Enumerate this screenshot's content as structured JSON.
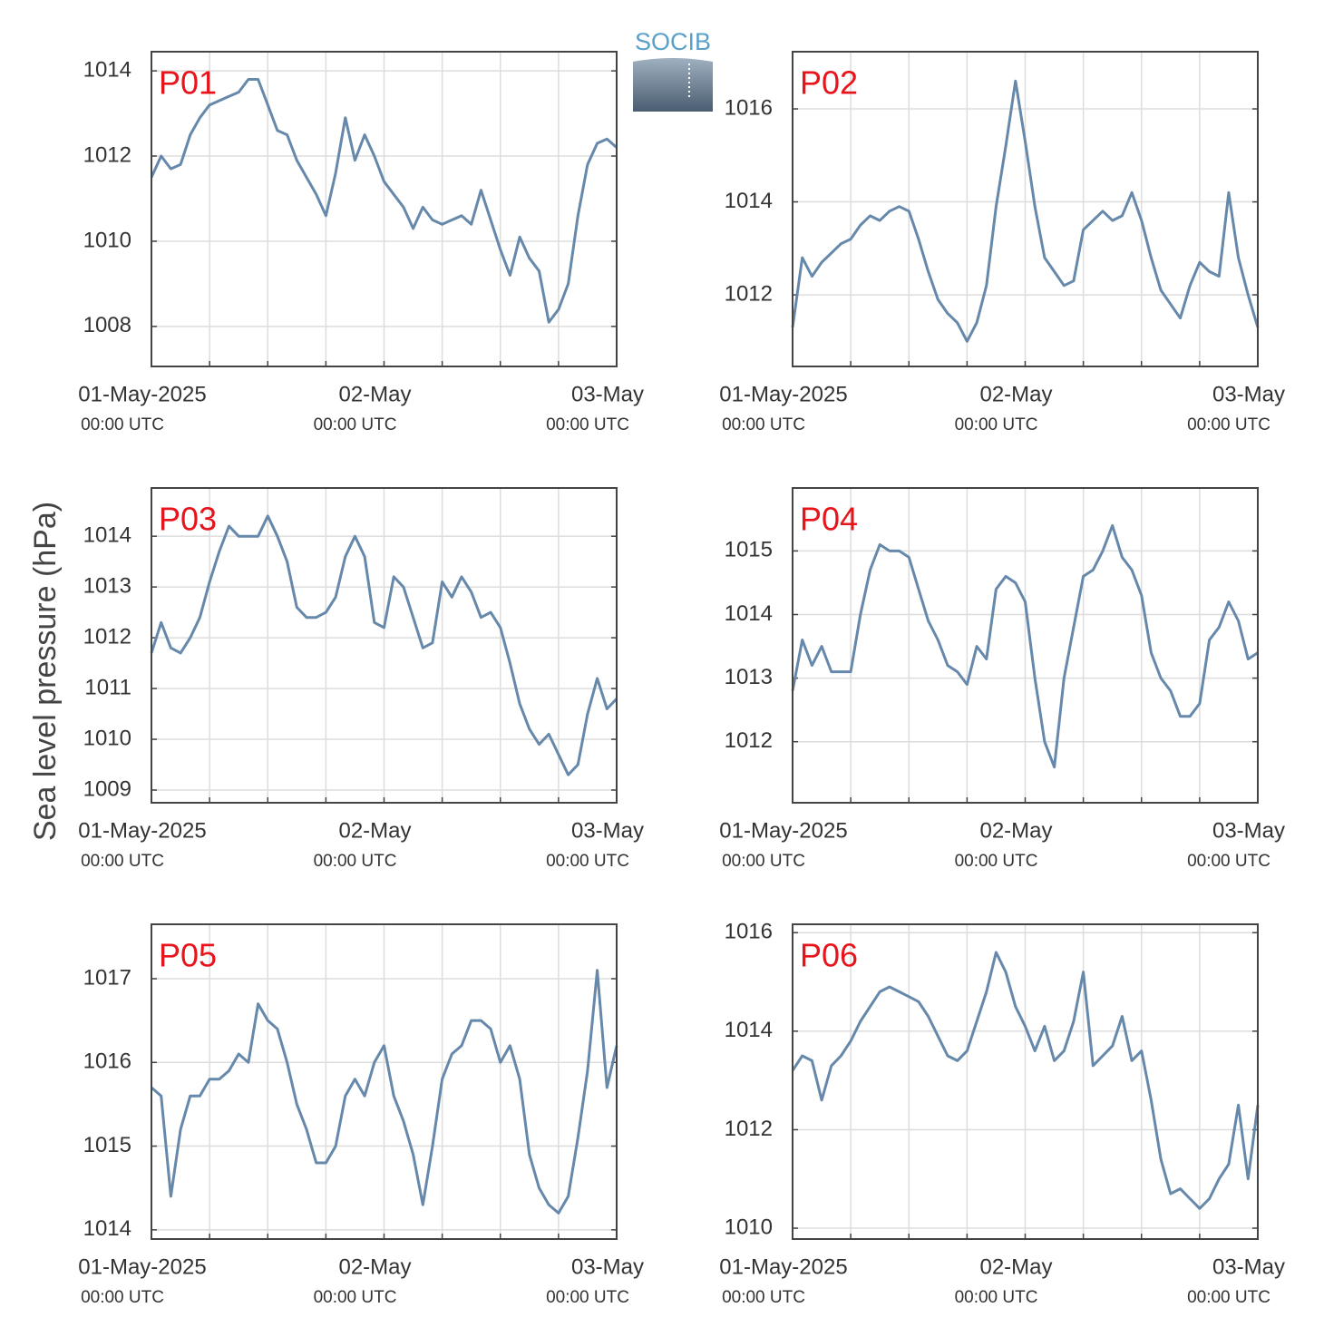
{
  "ylabel": "Sea level pressure (hPa)",
  "logo": "SOCIB",
  "chart_data": [
    {
      "type": "line",
      "title": "P01",
      "color": "#6688aa",
      "grid": true,
      "x": [
        "2025-05-01T00:00",
        "2025-05-01T01:00",
        "2025-05-01T02:00",
        "2025-05-01T03:00",
        "2025-05-01T04:00",
        "2025-05-01T05:00",
        "2025-05-01T06:00",
        "2025-05-01T07:00",
        "2025-05-01T08:00",
        "2025-05-01T09:00",
        "2025-05-01T10:00",
        "2025-05-01T11:00",
        "2025-05-01T12:00",
        "2025-05-01T13:00",
        "2025-05-01T14:00",
        "2025-05-01T15:00",
        "2025-05-01T16:00",
        "2025-05-01T17:00",
        "2025-05-01T18:00",
        "2025-05-01T19:00",
        "2025-05-01T20:00",
        "2025-05-01T21:00",
        "2025-05-01T22:00",
        "2025-05-01T23:00",
        "2025-05-02T00:00",
        "2025-05-02T01:00",
        "2025-05-02T02:00",
        "2025-05-02T03:00",
        "2025-05-02T04:00",
        "2025-05-02T05:00",
        "2025-05-02T06:00",
        "2025-05-02T07:00",
        "2025-05-02T08:00",
        "2025-05-02T09:00",
        "2025-05-02T10:00",
        "2025-05-02T11:00",
        "2025-05-02T12:00",
        "2025-05-02T13:00",
        "2025-05-02T14:00",
        "2025-05-02T15:00",
        "2025-05-02T16:00",
        "2025-05-02T17:00",
        "2025-05-02T18:00",
        "2025-05-02T19:00",
        "2025-05-02T20:00",
        "2025-05-02T21:00",
        "2025-05-02T22:00",
        "2025-05-02T23:00",
        "2025-05-03T00:00"
      ],
      "values": [
        1011.5,
        1012.0,
        1011.7,
        1011.8,
        1012.5,
        1012.9,
        1013.2,
        1013.3,
        1013.4,
        1013.5,
        1013.8,
        1013.8,
        1013.2,
        1012.6,
        1012.5,
        1011.9,
        1011.5,
        1011.1,
        1010.6,
        1011.6,
        1012.9,
        1011.9,
        1012.5,
        1012.0,
        1011.4,
        1011.1,
        1010.8,
        1010.3,
        1010.8,
        1010.5,
        1010.4,
        1010.5,
        1010.6,
        1010.4,
        1011.2,
        1010.5,
        1009.8,
        1009.2,
        1010.1,
        1009.6,
        1009.3,
        1008.1,
        1008.4,
        1009.0,
        1010.6,
        1011.8,
        1012.3,
        1012.4,
        1012.2
      ],
      "xlim": [
        "2025-05-01T00:00",
        "2025-05-03T00:00"
      ],
      "xticks": [
        {
          "value": "2025-05-01T00:00",
          "label": "01-May-2025",
          "sublabel": "00:00 UTC"
        },
        {
          "value": "2025-05-02T00:00",
          "label": "02-May",
          "sublabel": "00:00 UTC"
        },
        {
          "value": "2025-05-03T00:00",
          "label": "03-May",
          "sublabel": "00:00 UTC"
        }
      ],
      "xminorticks": [
        "2025-05-01T06:00",
        "2025-05-01T12:00",
        "2025-05-01T18:00",
        "2025-05-02T06:00",
        "2025-05-02T12:00",
        "2025-05-02T18:00"
      ],
      "ylim": [
        1007.06,
        1014.45
      ],
      "yticks": [
        1008,
        1010,
        1012,
        1014
      ]
    },
    {
      "type": "line",
      "title": "P02",
      "color": "#6688aa",
      "grid": true,
      "x": [
        "2025-05-01T00:00",
        "2025-05-01T01:00",
        "2025-05-01T02:00",
        "2025-05-01T03:00",
        "2025-05-01T04:00",
        "2025-05-01T05:00",
        "2025-05-01T06:00",
        "2025-05-01T07:00",
        "2025-05-01T08:00",
        "2025-05-01T09:00",
        "2025-05-01T10:00",
        "2025-05-01T11:00",
        "2025-05-01T12:00",
        "2025-05-01T13:00",
        "2025-05-01T14:00",
        "2025-05-01T15:00",
        "2025-05-01T16:00",
        "2025-05-01T17:00",
        "2025-05-01T18:00",
        "2025-05-01T19:00",
        "2025-05-01T20:00",
        "2025-05-01T21:00",
        "2025-05-01T22:00",
        "2025-05-01T23:00",
        "2025-05-02T00:00",
        "2025-05-02T01:00",
        "2025-05-02T02:00",
        "2025-05-02T03:00",
        "2025-05-02T04:00",
        "2025-05-02T05:00",
        "2025-05-02T06:00",
        "2025-05-02T07:00",
        "2025-05-02T08:00",
        "2025-05-02T09:00",
        "2025-05-02T10:00",
        "2025-05-02T11:00",
        "2025-05-02T12:00",
        "2025-05-02T13:00",
        "2025-05-02T14:00",
        "2025-05-02T15:00",
        "2025-05-02T16:00",
        "2025-05-02T17:00",
        "2025-05-02T18:00",
        "2025-05-02T19:00",
        "2025-05-02T20:00",
        "2025-05-02T21:00",
        "2025-05-02T22:00",
        "2025-05-02T23:00",
        "2025-05-03T00:00"
      ],
      "values": [
        1011.3,
        1012.8,
        1012.4,
        1012.7,
        1012.9,
        1013.1,
        1013.2,
        1013.5,
        1013.7,
        1013.6,
        1013.8,
        1013.9,
        1013.8,
        1013.2,
        1012.5,
        1011.9,
        1011.6,
        1011.4,
        1011.0,
        1011.4,
        1012.2,
        1013.9,
        1015.2,
        1016.6,
        1015.3,
        1013.9,
        1012.8,
        1012.5,
        1012.2,
        1012.3,
        1013.4,
        1013.6,
        1013.8,
        1013.6,
        1013.7,
        1014.2,
        1013.6,
        1012.8,
        1012.1,
        1011.8,
        1011.5,
        1012.2,
        1012.7,
        1012.5,
        1012.4,
        1014.2,
        1012.8,
        1012.0,
        1011.3
      ],
      "xlim": [
        "2025-05-01T00:00",
        "2025-05-03T00:00"
      ],
      "xticks": [
        {
          "value": "2025-05-01T00:00",
          "label": "01-May-2025",
          "sublabel": "00:00 UTC"
        },
        {
          "value": "2025-05-02T00:00",
          "label": "02-May",
          "sublabel": "00:00 UTC"
        },
        {
          "value": "2025-05-03T00:00",
          "label": "03-May",
          "sublabel": "00:00 UTC"
        }
      ],
      "xminorticks": [
        "2025-05-01T06:00",
        "2025-05-01T12:00",
        "2025-05-01T18:00",
        "2025-05-02T06:00",
        "2025-05-02T12:00",
        "2025-05-02T18:00"
      ],
      "ylim": [
        1010.46,
        1017.23
      ],
      "yticks": [
        1012,
        1014,
        1016
      ]
    },
    {
      "type": "line",
      "title": "P03",
      "color": "#6688aa",
      "grid": true,
      "x": [
        "2025-05-01T00:00",
        "2025-05-01T01:00",
        "2025-05-01T02:00",
        "2025-05-01T03:00",
        "2025-05-01T04:00",
        "2025-05-01T05:00",
        "2025-05-01T06:00",
        "2025-05-01T07:00",
        "2025-05-01T08:00",
        "2025-05-01T09:00",
        "2025-05-01T10:00",
        "2025-05-01T11:00",
        "2025-05-01T12:00",
        "2025-05-01T13:00",
        "2025-05-01T14:00",
        "2025-05-01T15:00",
        "2025-05-01T16:00",
        "2025-05-01T17:00",
        "2025-05-01T18:00",
        "2025-05-01T19:00",
        "2025-05-01T20:00",
        "2025-05-01T21:00",
        "2025-05-01T22:00",
        "2025-05-01T23:00",
        "2025-05-02T00:00",
        "2025-05-02T01:00",
        "2025-05-02T02:00",
        "2025-05-02T03:00",
        "2025-05-02T04:00",
        "2025-05-02T05:00",
        "2025-05-02T06:00",
        "2025-05-02T07:00",
        "2025-05-02T08:00",
        "2025-05-02T09:00",
        "2025-05-02T10:00",
        "2025-05-02T11:00",
        "2025-05-02T12:00",
        "2025-05-02T13:00",
        "2025-05-02T14:00",
        "2025-05-02T15:00",
        "2025-05-02T16:00",
        "2025-05-02T17:00",
        "2025-05-02T18:00",
        "2025-05-02T19:00",
        "2025-05-02T20:00",
        "2025-05-02T21:00",
        "2025-05-02T22:00",
        "2025-05-02T23:00",
        "2025-05-03T00:00"
      ],
      "values": [
        1011.7,
        1012.3,
        1011.8,
        1011.7,
        1012.0,
        1012.4,
        1013.1,
        1013.7,
        1014.2,
        1014.0,
        1014.0,
        1014.0,
        1014.4,
        1014.0,
        1013.5,
        1012.6,
        1012.4,
        1012.4,
        1012.5,
        1012.8,
        1013.6,
        1014.0,
        1013.6,
        1012.3,
        1012.2,
        1013.2,
        1013.0,
        1012.4,
        1011.8,
        1011.9,
        1013.1,
        1012.8,
        1013.2,
        1012.9,
        1012.4,
        1012.5,
        1012.2,
        1011.5,
        1010.7,
        1010.2,
        1009.9,
        1010.1,
        1009.7,
        1009.3,
        1009.5,
        1010.5,
        1011.2,
        1010.6,
        1010.8
      ],
      "xlim": [
        "2025-05-01T00:00",
        "2025-05-03T00:00"
      ],
      "xticks": [
        {
          "value": "2025-05-01T00:00",
          "label": "01-May-2025",
          "sublabel": "00:00 UTC"
        },
        {
          "value": "2025-05-02T00:00",
          "label": "02-May",
          "sublabel": "00:00 UTC"
        },
        {
          "value": "2025-05-03T00:00",
          "label": "03-May",
          "sublabel": "00:00 UTC"
        }
      ],
      "xminorticks": [
        "2025-05-01T06:00",
        "2025-05-01T12:00",
        "2025-05-01T18:00",
        "2025-05-02T06:00",
        "2025-05-02T12:00",
        "2025-05-02T18:00"
      ],
      "ylim": [
        1008.75,
        1014.95
      ],
      "yticks": [
        1009,
        1010,
        1011,
        1012,
        1013,
        1014
      ]
    },
    {
      "type": "line",
      "title": "P04",
      "color": "#6688aa",
      "grid": true,
      "x": [
        "2025-05-01T00:00",
        "2025-05-01T01:00",
        "2025-05-01T02:00",
        "2025-05-01T03:00",
        "2025-05-01T04:00",
        "2025-05-01T05:00",
        "2025-05-01T06:00",
        "2025-05-01T07:00",
        "2025-05-01T08:00",
        "2025-05-01T09:00",
        "2025-05-01T10:00",
        "2025-05-01T11:00",
        "2025-05-01T12:00",
        "2025-05-01T13:00",
        "2025-05-01T14:00",
        "2025-05-01T15:00",
        "2025-05-01T16:00",
        "2025-05-01T17:00",
        "2025-05-01T18:00",
        "2025-05-01T19:00",
        "2025-05-01T20:00",
        "2025-05-01T21:00",
        "2025-05-01T22:00",
        "2025-05-01T23:00",
        "2025-05-02T00:00",
        "2025-05-02T01:00",
        "2025-05-02T02:00",
        "2025-05-02T03:00",
        "2025-05-02T04:00",
        "2025-05-02T05:00",
        "2025-05-02T06:00",
        "2025-05-02T07:00",
        "2025-05-02T08:00",
        "2025-05-02T09:00",
        "2025-05-02T10:00",
        "2025-05-02T11:00",
        "2025-05-02T12:00",
        "2025-05-02T13:00",
        "2025-05-02T14:00",
        "2025-05-02T15:00",
        "2025-05-02T16:00",
        "2025-05-02T17:00",
        "2025-05-02T18:00",
        "2025-05-02T19:00",
        "2025-05-02T20:00",
        "2025-05-02T21:00",
        "2025-05-02T22:00",
        "2025-05-02T23:00",
        "2025-05-03T00:00"
      ],
      "values": [
        1012.8,
        1013.6,
        1013.2,
        1013.5,
        1013.1,
        1013.1,
        1013.1,
        1014.0,
        1014.7,
        1015.1,
        1015.0,
        1015.0,
        1014.9,
        1014.4,
        1013.9,
        1013.6,
        1013.2,
        1013.1,
        1012.9,
        1013.5,
        1013.3,
        1014.4,
        1014.6,
        1014.5,
        1014.2,
        1013.0,
        1012.0,
        1011.6,
        1013.0,
        1013.8,
        1014.6,
        1014.7,
        1015.0,
        1015.4,
        1014.9,
        1014.7,
        1014.3,
        1013.4,
        1013.0,
        1012.8,
        1012.4,
        1012.4,
        1012.6,
        1013.6,
        1013.8,
        1014.2,
        1013.9,
        1013.3,
        1013.4
      ],
      "xlim": [
        "2025-05-01T00:00",
        "2025-05-03T00:00"
      ],
      "xticks": [
        {
          "value": "2025-05-01T00:00",
          "label": "01-May-2025",
          "sublabel": "00:00 UTC"
        },
        {
          "value": "2025-05-02T00:00",
          "label": "02-May",
          "sublabel": "00:00 UTC"
        },
        {
          "value": "2025-05-03T00:00",
          "label": "03-May",
          "sublabel": "00:00 UTC"
        }
      ],
      "xminorticks": [
        "2025-05-01T06:00",
        "2025-05-01T12:00",
        "2025-05-01T18:00",
        "2025-05-02T06:00",
        "2025-05-02T12:00",
        "2025-05-02T18:00"
      ],
      "ylim": [
        1011.04,
        1015.99
      ],
      "yticks": [
        1012,
        1013,
        1014,
        1015
      ]
    },
    {
      "type": "line",
      "title": "P05",
      "color": "#6688aa",
      "grid": true,
      "x": [
        "2025-05-01T00:00",
        "2025-05-01T01:00",
        "2025-05-01T02:00",
        "2025-05-01T03:00",
        "2025-05-01T04:00",
        "2025-05-01T05:00",
        "2025-05-01T06:00",
        "2025-05-01T07:00",
        "2025-05-01T08:00",
        "2025-05-01T09:00",
        "2025-05-01T10:00",
        "2025-05-01T11:00",
        "2025-05-01T12:00",
        "2025-05-01T13:00",
        "2025-05-01T14:00",
        "2025-05-01T15:00",
        "2025-05-01T16:00",
        "2025-05-01T17:00",
        "2025-05-01T18:00",
        "2025-05-01T19:00",
        "2025-05-01T20:00",
        "2025-05-01T21:00",
        "2025-05-01T22:00",
        "2025-05-01T23:00",
        "2025-05-02T00:00",
        "2025-05-02T01:00",
        "2025-05-02T02:00",
        "2025-05-02T03:00",
        "2025-05-02T04:00",
        "2025-05-02T05:00",
        "2025-05-02T06:00",
        "2025-05-02T07:00",
        "2025-05-02T08:00",
        "2025-05-02T09:00",
        "2025-05-02T10:00",
        "2025-05-02T11:00",
        "2025-05-02T12:00",
        "2025-05-02T13:00",
        "2025-05-02T14:00",
        "2025-05-02T15:00",
        "2025-05-02T16:00",
        "2025-05-02T17:00",
        "2025-05-02T18:00",
        "2025-05-02T19:00",
        "2025-05-02T20:00",
        "2025-05-02T21:00",
        "2025-05-02T22:00",
        "2025-05-02T23:00",
        "2025-05-03T00:00"
      ],
      "values": [
        1015.7,
        1015.6,
        1014.4,
        1015.2,
        1015.6,
        1015.6,
        1015.8,
        1015.8,
        1015.9,
        1016.1,
        1016.0,
        1016.7,
        1016.5,
        1016.4,
        1016.0,
        1015.5,
        1015.2,
        1014.8,
        1014.8,
        1015.0,
        1015.6,
        1015.8,
        1015.6,
        1016.0,
        1016.2,
        1015.6,
        1015.3,
        1014.9,
        1014.3,
        1015.0,
        1015.8,
        1016.1,
        1016.2,
        1016.5,
        1016.5,
        1016.4,
        1016.0,
        1016.2,
        1015.8,
        1014.9,
        1014.5,
        1014.3,
        1014.2,
        1014.4,
        1015.1,
        1015.9,
        1017.1,
        1015.7,
        1016.2
      ],
      "xlim": [
        "2025-05-01T00:00",
        "2025-05-03T00:00"
      ],
      "xticks": [
        {
          "value": "2025-05-01T00:00",
          "label": "01-May-2025",
          "sublabel": "00:00 UTC"
        },
        {
          "value": "2025-05-02T00:00",
          "label": "02-May",
          "sublabel": "00:00 UTC"
        },
        {
          "value": "2025-05-03T00:00",
          "label": "03-May",
          "sublabel": "00:00 UTC"
        }
      ],
      "xminorticks": [
        "2025-05-01T06:00",
        "2025-05-01T12:00",
        "2025-05-01T18:00",
        "2025-05-02T06:00",
        "2025-05-02T12:00",
        "2025-05-02T18:00"
      ],
      "ylim": [
        1013.89,
        1017.65
      ],
      "yticks": [
        1014,
        1015,
        1016,
        1017
      ]
    },
    {
      "type": "line",
      "title": "P06",
      "color": "#6688aa",
      "grid": true,
      "x": [
        "2025-05-01T00:00",
        "2025-05-01T01:00",
        "2025-05-01T02:00",
        "2025-05-01T03:00",
        "2025-05-01T04:00",
        "2025-05-01T05:00",
        "2025-05-01T06:00",
        "2025-05-01T07:00",
        "2025-05-01T08:00",
        "2025-05-01T09:00",
        "2025-05-01T10:00",
        "2025-05-01T11:00",
        "2025-05-01T12:00",
        "2025-05-01T13:00",
        "2025-05-01T14:00",
        "2025-05-01T15:00",
        "2025-05-01T16:00",
        "2025-05-01T17:00",
        "2025-05-01T18:00",
        "2025-05-01T19:00",
        "2025-05-01T20:00",
        "2025-05-01T21:00",
        "2025-05-01T22:00",
        "2025-05-01T23:00",
        "2025-05-02T00:00",
        "2025-05-02T01:00",
        "2025-05-02T02:00",
        "2025-05-02T03:00",
        "2025-05-02T04:00",
        "2025-05-02T05:00",
        "2025-05-02T06:00",
        "2025-05-02T07:00",
        "2025-05-02T08:00",
        "2025-05-02T09:00",
        "2025-05-02T10:00",
        "2025-05-02T11:00",
        "2025-05-02T12:00",
        "2025-05-02T13:00",
        "2025-05-02T14:00",
        "2025-05-02T15:00",
        "2025-05-02T16:00",
        "2025-05-02T17:00",
        "2025-05-02T18:00",
        "2025-05-02T19:00",
        "2025-05-02T20:00",
        "2025-05-02T21:00",
        "2025-05-02T22:00",
        "2025-05-02T23:00",
        "2025-05-03T00:00"
      ],
      "values": [
        1013.2,
        1013.5,
        1013.4,
        1012.6,
        1013.3,
        1013.5,
        1013.8,
        1014.2,
        1014.5,
        1014.8,
        1014.9,
        1014.8,
        1014.7,
        1014.6,
        1014.3,
        1013.9,
        1013.5,
        1013.4,
        1013.6,
        1014.2,
        1014.8,
        1015.6,
        1015.2,
        1014.5,
        1014.1,
        1013.6,
        1014.1,
        1013.4,
        1013.6,
        1014.2,
        1015.2,
        1013.3,
        1013.5,
        1013.7,
        1014.3,
        1013.4,
        1013.6,
        1012.6,
        1011.4,
        1010.7,
        1010.8,
        1010.6,
        1010.4,
        1010.6,
        1011.0,
        1011.3,
        1012.5,
        1011.0,
        1012.5
      ],
      "xlim": [
        "2025-05-01T00:00",
        "2025-05-03T00:00"
      ],
      "xticks": [
        {
          "value": "2025-05-01T00:00",
          "label": "01-May-2025",
          "sublabel": "00:00 UTC"
        },
        {
          "value": "2025-05-02T00:00",
          "label": "02-May",
          "sublabel": "00:00 UTC"
        },
        {
          "value": "2025-05-03T00:00",
          "label": "03-May",
          "sublabel": "00:00 UTC"
        }
      ],
      "xminorticks": [
        "2025-05-01T06:00",
        "2025-05-01T12:00",
        "2025-05-01T18:00",
        "2025-05-02T06:00",
        "2025-05-02T12:00",
        "2025-05-02T18:00"
      ],
      "ylim": [
        1009.78,
        1016.17
      ],
      "yticks": [
        1010,
        1012,
        1014,
        1016
      ]
    }
  ]
}
